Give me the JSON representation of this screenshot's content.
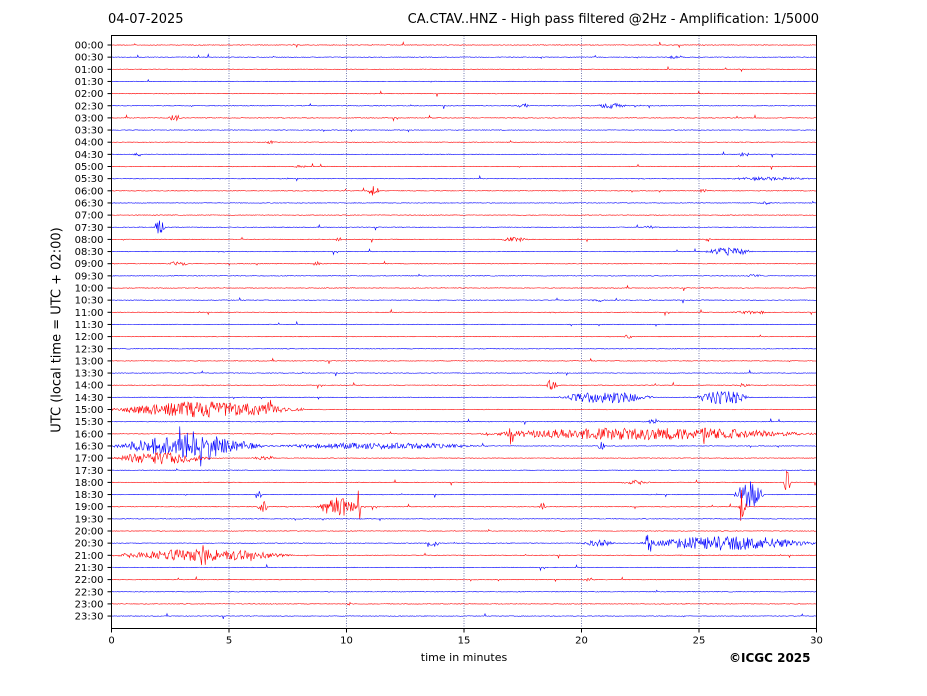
{
  "header": {
    "date": "04-07-2025",
    "title": "CA.CTAV..HNZ - High pass filtered @2Hz - Amplification: 1/5000"
  },
  "footer": {
    "copyright": "©ICGC 2025"
  },
  "chart_data": {
    "type": "line",
    "title": "CA.CTAV..HNZ - High pass filtered @2Hz - Amplification: 1/5000",
    "xlabel": "time in minutes",
    "ylabel": "UTC (local time = UTC + 02:00)",
    "xlim": [
      0,
      30
    ],
    "xticks": [
      0,
      5,
      10,
      15,
      20,
      25,
      30
    ],
    "grid": "vertical dotted lines at 5-minute ticks",
    "trace_colors": [
      "#ff0000",
      "#0000ff"
    ],
    "rows": [
      "00:00",
      "00:30",
      "01:00",
      "01:30",
      "02:00",
      "02:30",
      "03:00",
      "03:30",
      "04:00",
      "04:30",
      "05:00",
      "05:30",
      "06:00",
      "06:30",
      "07:00",
      "07:30",
      "08:00",
      "08:30",
      "09:00",
      "09:30",
      "10:00",
      "10:30",
      "11:00",
      "11:30",
      "12:00",
      "12:30",
      "13:00",
      "13:30",
      "14:00",
      "14:30",
      "15:00",
      "15:30",
      "16:00",
      "16:30",
      "17:00",
      "17:30",
      "18:00",
      "18:30",
      "19:00",
      "19:30",
      "20:00",
      "20:30",
      "21:00",
      "21:30",
      "22:00",
      "22:30",
      "23:00",
      "23:30"
    ],
    "events": [
      {
        "row": "00:30",
        "start": 23.6,
        "end": 24.2,
        "amp": 1.5
      },
      {
        "row": "02:30",
        "start": 17.2,
        "end": 17.8,
        "amp": 2.5
      },
      {
        "row": "02:30",
        "start": 20.5,
        "end": 22.0,
        "amp": 2.5
      },
      {
        "row": "03:00",
        "start": 2.4,
        "end": 3.0,
        "amp": 3.5
      },
      {
        "row": "04:00",
        "start": 6.5,
        "end": 7.0,
        "amp": 1.5
      },
      {
        "row": "04:30",
        "start": 0.9,
        "end": 1.3,
        "amp": 1.5
      },
      {
        "row": "04:30",
        "start": 26.6,
        "end": 27.2,
        "amp": 2
      },
      {
        "row": "05:00",
        "start": 7.7,
        "end": 8.3,
        "amp": 1.5
      },
      {
        "row": "05:30",
        "start": 26.0,
        "end": 30.0,
        "amp": 1.5
      },
      {
        "row": "06:00",
        "start": 10.9,
        "end": 11.4,
        "amp": 5
      },
      {
        "row": "06:00",
        "start": 24.9,
        "end": 25.5,
        "amp": 1.5
      },
      {
        "row": "06:30",
        "start": 27.6,
        "end": 28.1,
        "amp": 1.5
      },
      {
        "row": "07:30",
        "start": 1.8,
        "end": 2.3,
        "amp": 7
      },
      {
        "row": "07:30",
        "start": 22.6,
        "end": 23.2,
        "amp": 1.5
      },
      {
        "row": "08:00",
        "start": 9.5,
        "end": 9.8,
        "amp": 2
      },
      {
        "row": "08:00",
        "start": 16.5,
        "end": 17.8,
        "amp": 2
      },
      {
        "row": "08:00",
        "start": 25.2,
        "end": 25.6,
        "amp": 2
      },
      {
        "row": "08:30",
        "start": 25.3,
        "end": 27.3,
        "amp": 4
      },
      {
        "row": "09:00",
        "start": 2.4,
        "end": 3.3,
        "amp": 2.5
      },
      {
        "row": "09:00",
        "start": 8.6,
        "end": 8.9,
        "amp": 2.5
      },
      {
        "row": "09:30",
        "start": 27.0,
        "end": 27.8,
        "amp": 1.5
      },
      {
        "row": "10:30",
        "start": 20.4,
        "end": 21.0,
        "amp": 1.5
      },
      {
        "row": "11:00",
        "start": 26.2,
        "end": 28.2,
        "amp": 1.5
      },
      {
        "row": "12:00",
        "start": 21.8,
        "end": 22.2,
        "amp": 2
      },
      {
        "row": "14:00",
        "start": 18.5,
        "end": 19.0,
        "amp": 6
      },
      {
        "row": "14:00",
        "start": 26.5,
        "end": 27.2,
        "amp": 1.5
      },
      {
        "row": "14:30",
        "start": 19.0,
        "end": 23.1,
        "amp": 6
      },
      {
        "row": "14:30",
        "start": 24.8,
        "end": 27.2,
        "amp": 7
      },
      {
        "row": "15:00",
        "start": 0.0,
        "end": 8.2,
        "amp": 8
      },
      {
        "row": "15:00",
        "start": 6.6,
        "end": 6.9,
        "amp": 15
      },
      {
        "row": "15:30",
        "start": 22.8,
        "end": 23.4,
        "amp": 3
      },
      {
        "row": "16:00",
        "start": 15.6,
        "end": 30.0,
        "amp": 6
      },
      {
        "row": "16:00",
        "start": 16.8,
        "end": 17.2,
        "amp": 11
      },
      {
        "row": "16:00",
        "start": 25.0,
        "end": 25.3,
        "amp": 11
      },
      {
        "row": "16:30",
        "start": 0.0,
        "end": 6.5,
        "amp": 10
      },
      {
        "row": "16:30",
        "start": 2.5,
        "end": 4.5,
        "amp": 17
      },
      {
        "row": "16:30",
        "start": 6.5,
        "end": 16.0,
        "amp": 3
      },
      {
        "row": "16:30",
        "start": 20.7,
        "end": 21.0,
        "amp": 6
      },
      {
        "row": "17:00",
        "start": 0.0,
        "end": 4.2,
        "amp": 6
      },
      {
        "row": "17:00",
        "start": 6.0,
        "end": 7.0,
        "amp": 2.5
      },
      {
        "row": "18:00",
        "start": 28.6,
        "end": 28.9,
        "amp": 12
      },
      {
        "row": "18:00",
        "start": 21.6,
        "end": 23.0,
        "amp": 2
      },
      {
        "row": "18:30",
        "start": 26.5,
        "end": 27.8,
        "amp": 14
      },
      {
        "row": "18:30",
        "start": 6.1,
        "end": 6.4,
        "amp": 6
      },
      {
        "row": "19:00",
        "start": 6.2,
        "end": 6.7,
        "amp": 6
      },
      {
        "row": "19:00",
        "start": 8.7,
        "end": 10.5,
        "amp": 10
      },
      {
        "row": "19:00",
        "start": 10.4,
        "end": 10.6,
        "amp": 22
      },
      {
        "row": "19:00",
        "start": 26.7,
        "end": 27.0,
        "amp": 20
      },
      {
        "row": "19:00",
        "start": 18.2,
        "end": 18.5,
        "amp": 4
      },
      {
        "row": "20:30",
        "start": 13.3,
        "end": 14.0,
        "amp": 4
      },
      {
        "row": "20:30",
        "start": 20.0,
        "end": 21.5,
        "amp": 3
      },
      {
        "row": "20:30",
        "start": 22.5,
        "end": 30.0,
        "amp": 7
      },
      {
        "row": "20:30",
        "start": 22.7,
        "end": 23.0,
        "amp": 12
      },
      {
        "row": "21:00",
        "start": 0.0,
        "end": 7.7,
        "amp": 6
      },
      {
        "row": "21:00",
        "start": 3.8,
        "end": 4.0,
        "amp": 28
      },
      {
        "row": "22:00",
        "start": 20.0,
        "end": 20.6,
        "amp": 2
      },
      {
        "row": "23:00",
        "start": 10.0,
        "end": 10.2,
        "amp": 2
      }
    ]
  }
}
